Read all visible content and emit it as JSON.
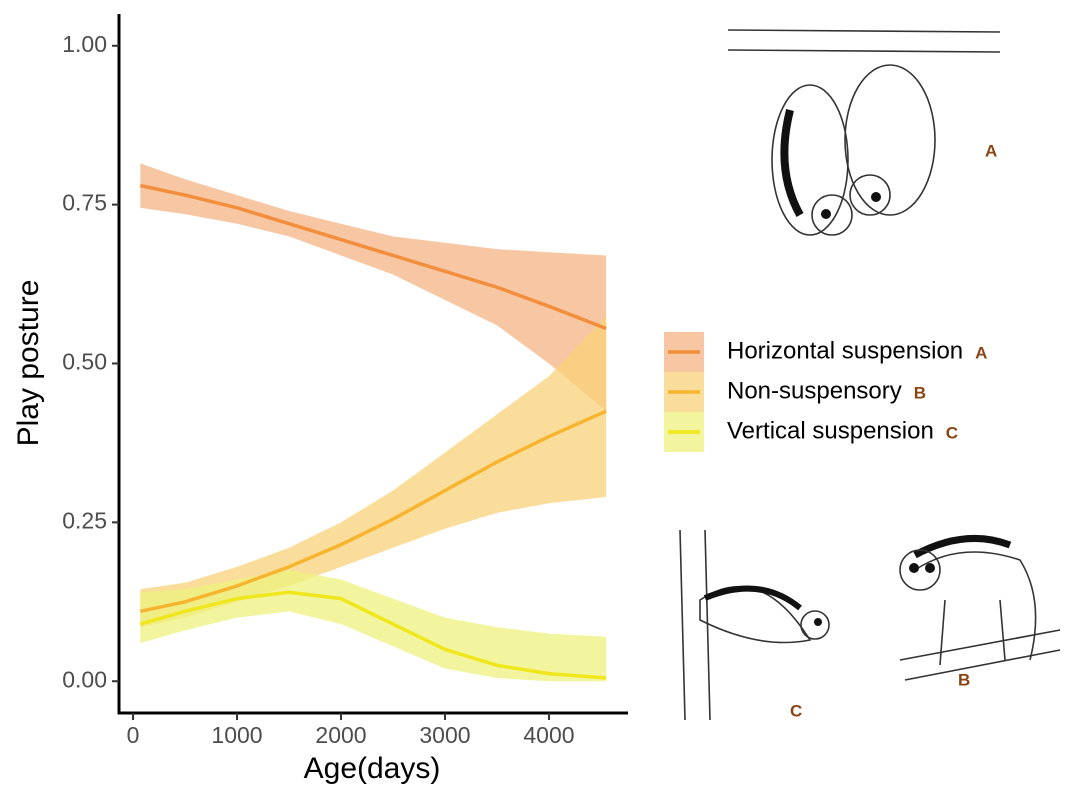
{
  "chart_data": {
    "type": "line",
    "x_label": "Age(days)",
    "y_label": "Play posture",
    "x": [
      70,
      500,
      1000,
      1500,
      2000,
      2500,
      3000,
      3500,
      4000,
      4550
    ],
    "series": [
      {
        "name": "Horizontal suspension",
        "tag": "A",
        "color": "#f28e3c",
        "band_color": "#f4b486",
        "values": [
          0.78,
          0.765,
          0.745,
          0.72,
          0.695,
          0.67,
          0.645,
          0.62,
          0.59,
          0.555
        ],
        "upper": [
          0.815,
          0.79,
          0.765,
          0.74,
          0.72,
          0.7,
          0.69,
          0.68,
          0.675,
          0.67
        ],
        "lower": [
          0.745,
          0.735,
          0.72,
          0.7,
          0.67,
          0.64,
          0.6,
          0.56,
          0.5,
          0.425
        ]
      },
      {
        "name": "Non-suspensory",
        "tag": "B",
        "color": "#f7b42e",
        "band_color": "#fad27a",
        "values": [
          0.11,
          0.125,
          0.15,
          0.18,
          0.215,
          0.255,
          0.3,
          0.345,
          0.385,
          0.425
        ],
        "upper": [
          0.145,
          0.155,
          0.18,
          0.21,
          0.25,
          0.3,
          0.36,
          0.42,
          0.48,
          0.575
        ],
        "lower": [
          0.085,
          0.1,
          0.125,
          0.15,
          0.18,
          0.21,
          0.24,
          0.265,
          0.28,
          0.29
        ]
      },
      {
        "name": "Vertical suspension",
        "tag": "C",
        "color": "#efe61c",
        "band_color": "#eef27e",
        "values": [
          0.09,
          0.11,
          0.13,
          0.14,
          0.13,
          0.09,
          0.05,
          0.025,
          0.012,
          0.005
        ],
        "upper": [
          0.14,
          0.145,
          0.16,
          0.175,
          0.16,
          0.13,
          0.1,
          0.085,
          0.075,
          0.07
        ],
        "lower": [
          0.06,
          0.08,
          0.1,
          0.11,
          0.09,
          0.055,
          0.02,
          0.005,
          0.0,
          0.0
        ]
      }
    ],
    "xlim": [
      -135,
      4760
    ],
    "ylim": [
      -0.05,
      1.05
    ],
    "xticks": [
      0,
      1000,
      2000,
      3000,
      4000
    ],
    "yticks": [
      {
        "value": 0,
        "label": "0.00"
      },
      {
        "value": 0.25,
        "label": "0.25"
      },
      {
        "value": 0.5,
        "label": "0.50"
      },
      {
        "value": 0.75,
        "label": "0.75"
      },
      {
        "value": 1,
        "label": "1.00"
      }
    ],
    "band_opacity": 0.75
  }
}
